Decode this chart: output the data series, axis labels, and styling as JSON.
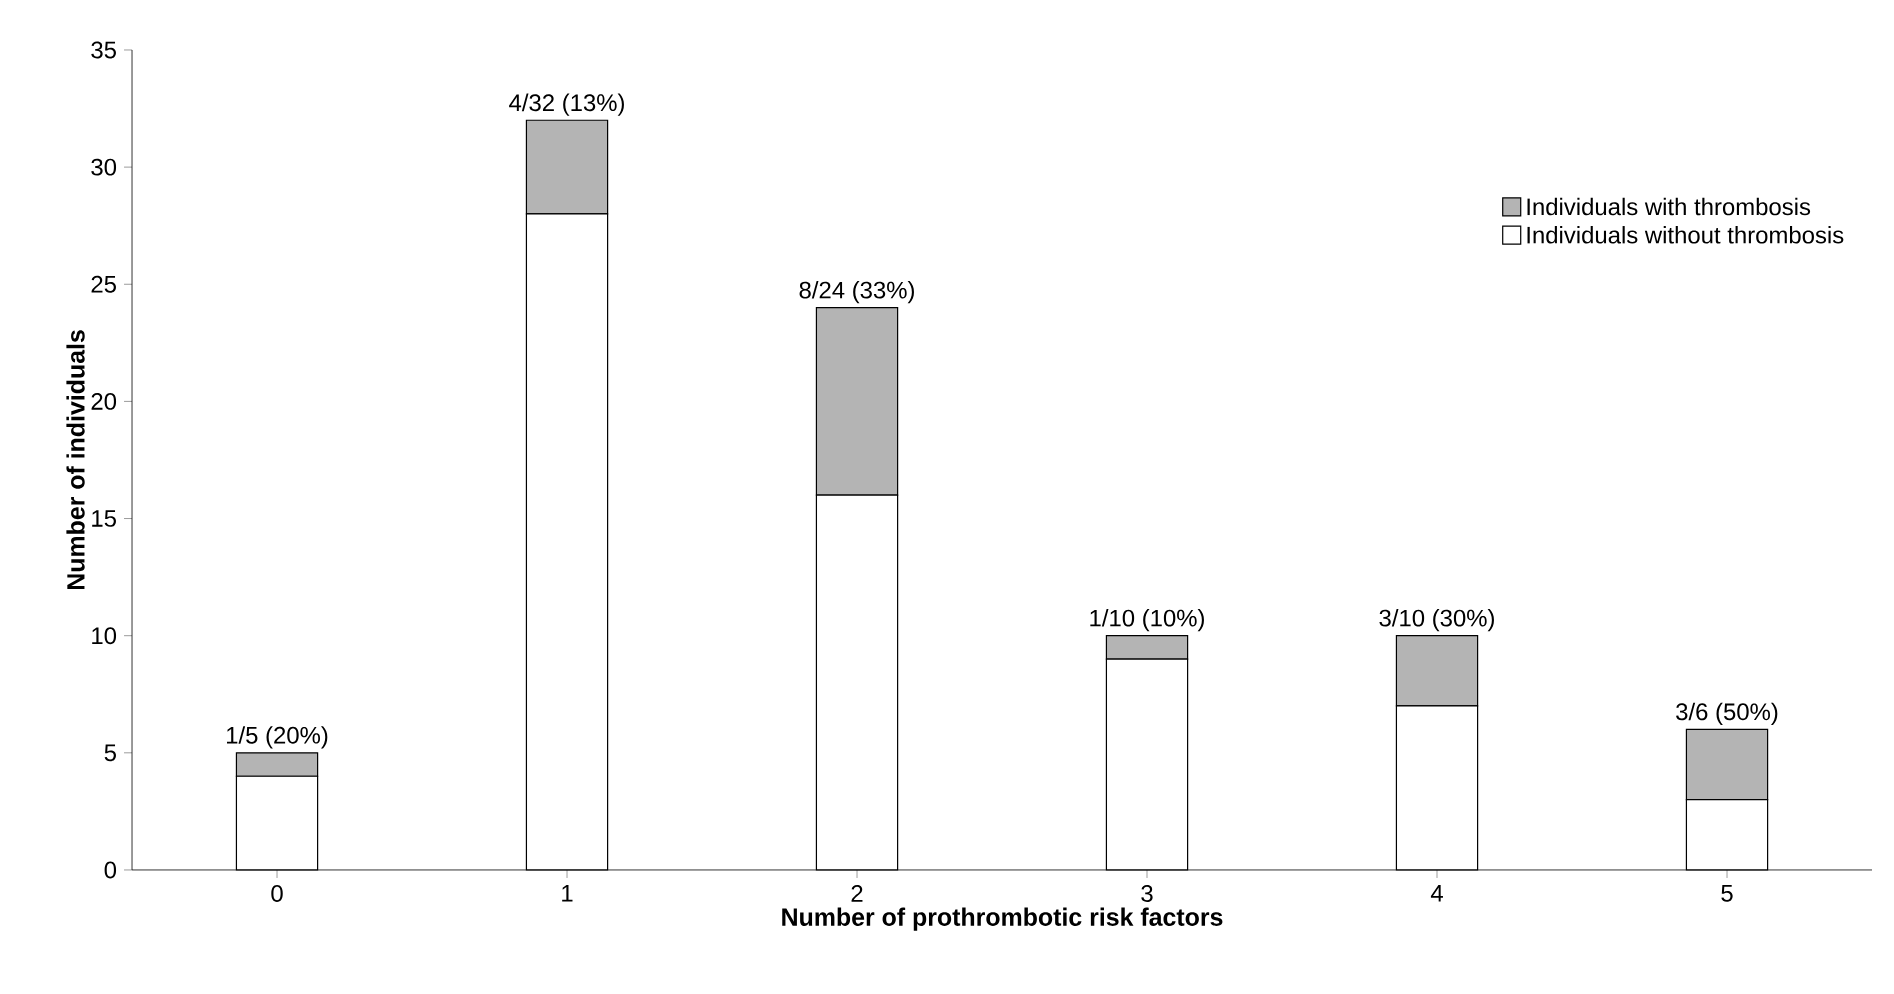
{
  "chart_data": {
    "type": "bar",
    "stacked": true,
    "xlabel": "Number of prothrombotic risk factors",
    "ylabel": "Number of individuals",
    "categories": [
      "0",
      "1",
      "2",
      "3",
      "4",
      "5"
    ],
    "series": [
      {
        "name": "Individuals without thrombosis",
        "color": "#ffffff",
        "values": [
          4,
          28,
          16,
          9,
          7,
          3
        ]
      },
      {
        "name": "Individuals with thrombosis",
        "color": "#b4b4b4",
        "values": [
          1,
          4,
          8,
          1,
          3,
          3
        ]
      }
    ],
    "totals": [
      "1/5 (20%)",
      "4/32 (13%)",
      "8/24 (33%)",
      "1/10 (10%)",
      "3/10 (30%)",
      "3/6 (50%)"
    ],
    "ylim": [
      0,
      35
    ],
    "yticks": [
      0,
      5,
      10,
      15,
      20,
      25,
      30,
      35
    ],
    "legend": "top right",
    "grid": false
  }
}
